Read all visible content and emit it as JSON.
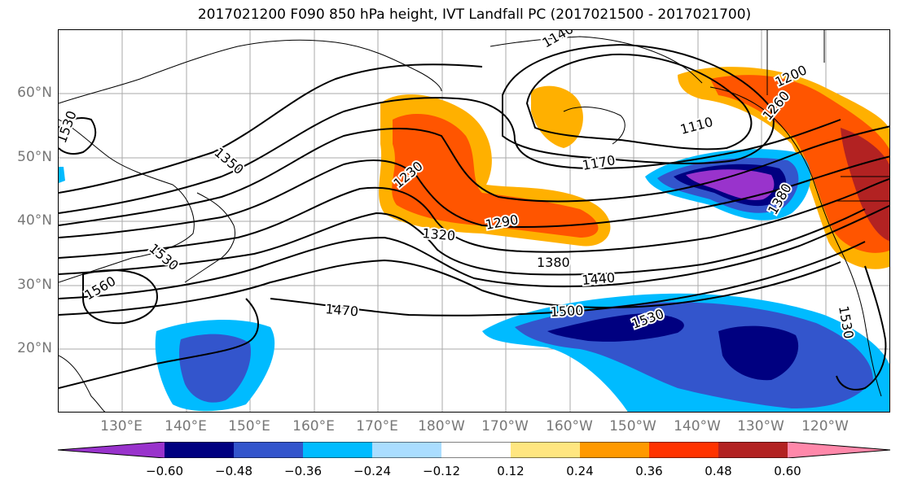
{
  "title": "2017021200 F090 850 hPa height, IVT Landfall PC (2017021500 - 2017021700)",
  "lat_labels": [
    "60°N",
    "50°N",
    "40°N",
    "30°N",
    "20°N"
  ],
  "lon_labels": [
    "130°E",
    "140°E",
    "150°E",
    "160°E",
    "170°E",
    "180°W",
    "170°W",
    "160°W",
    "150°W",
    "140°W",
    "130°W",
    "120°W"
  ],
  "contour_labels": [
    "1140",
    "1200",
    "1260",
    "1110",
    "1170",
    "1230",
    "1290",
    "1320",
    "1350",
    "1380",
    "1380",
    "1440",
    "1470",
    "1500",
    "1530",
    "1530",
    "1560",
    "1530",
    "1530"
  ],
  "colorbar": {
    "ticks": [
      "−0.60",
      "−0.48",
      "−0.36",
      "−0.24",
      "−0.12",
      "0.12",
      "0.24",
      "0.36",
      "0.48",
      "0.60"
    ],
    "colors": [
      "#9933cc",
      "#000080",
      "#3355cc",
      "#00bbff",
      "#aaddff",
      "#ffffff",
      "#ffe680",
      "#ff9900",
      "#ff3300",
      "#b22222",
      "#ff88aa"
    ]
  }
}
